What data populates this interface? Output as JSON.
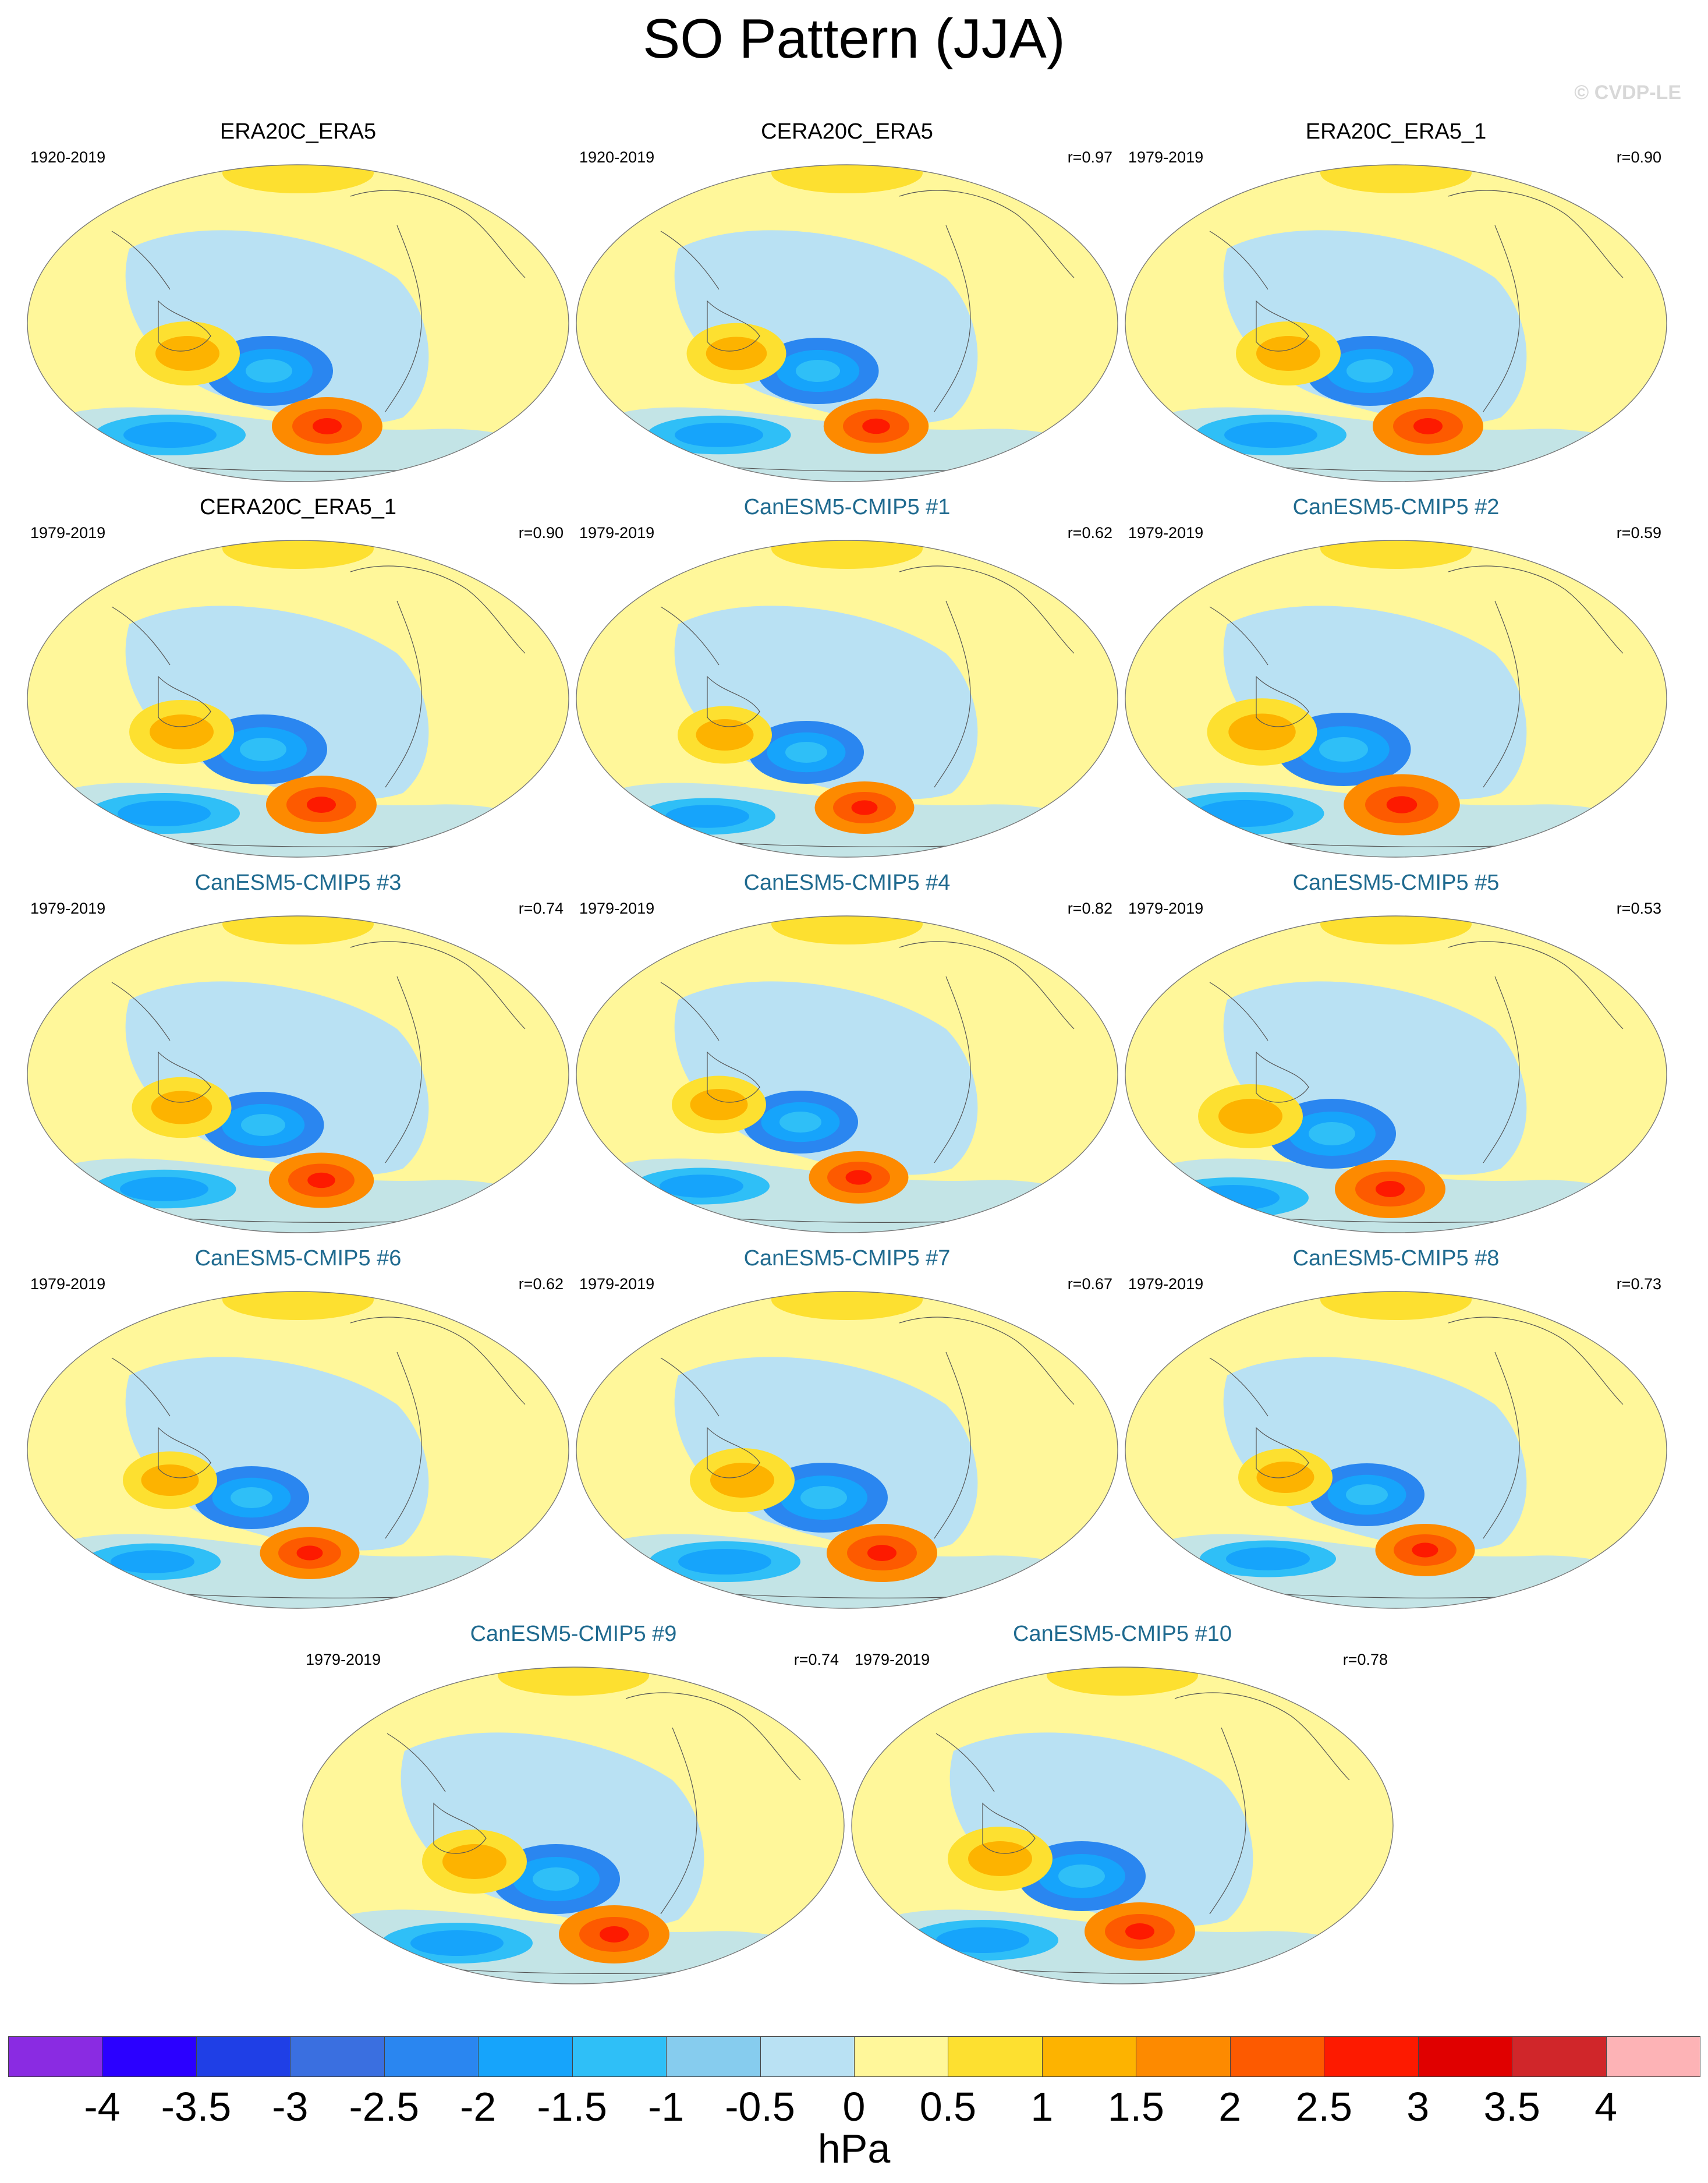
{
  "figure": {
    "title": "SO Pattern (JJA)",
    "watermark": "© CVDP-LE"
  },
  "panels": [
    {
      "name": "ERA20C_ERA5",
      "years": "1920-2019",
      "r": "",
      "type": "obs"
    },
    {
      "name": "CERA20C_ERA5",
      "years": "1920-2019",
      "r": "r=0.97",
      "type": "obs"
    },
    {
      "name": "ERA20C_ERA5_1",
      "years": "1979-2019",
      "r": "r=0.90",
      "type": "obs"
    },
    {
      "name": "CERA20C_ERA5_1",
      "years": "1979-2019",
      "r": "r=0.90",
      "type": "obs"
    },
    {
      "name": "CanESM5-CMIP5 #1",
      "years": "1979-2019",
      "r": "r=0.62",
      "type": "model"
    },
    {
      "name": "CanESM5-CMIP5 #2",
      "years": "1979-2019",
      "r": "r=0.59",
      "type": "model"
    },
    {
      "name": "CanESM5-CMIP5 #3",
      "years": "1979-2019",
      "r": "r=0.74",
      "type": "model"
    },
    {
      "name": "CanESM5-CMIP5 #4",
      "years": "1979-2019",
      "r": "r=0.82",
      "type": "model"
    },
    {
      "name": "CanESM5-CMIP5 #5",
      "years": "1979-2019",
      "r": "r=0.53",
      "type": "model"
    },
    {
      "name": "CanESM5-CMIP5 #6",
      "years": "1979-2019",
      "r": "r=0.62",
      "type": "model"
    },
    {
      "name": "CanESM5-CMIP5 #7",
      "years": "1979-2019",
      "r": "r=0.67",
      "type": "model"
    },
    {
      "name": "CanESM5-CMIP5 #8",
      "years": "1979-2019",
      "r": "r=0.73",
      "type": "model"
    },
    {
      "name": "CanESM5-CMIP5 #9",
      "years": "1979-2019",
      "r": "r=0.74",
      "type": "model"
    },
    {
      "name": "CanESM5-CMIP5 #10",
      "years": "1979-2019",
      "r": "r=0.78",
      "type": "model"
    }
  ],
  "colorbar": {
    "unit": "hPa",
    "ticks": [
      "-4",
      "-3.5",
      "-3",
      "-2.5",
      "-2",
      "-1.5",
      "-1",
      "-0.5",
      "0",
      "0.5",
      "1",
      "1.5",
      "2",
      "2.5",
      "3",
      "3.5",
      "4"
    ],
    "colors": [
      "#8a2be2",
      "#2b00ff",
      "#1f3fe6",
      "#3a6fe0",
      "#2a86f0",
      "#16a4fb",
      "#2fbff7",
      "#86ccee",
      "#b9e1f3",
      "#fff79a",
      "#fde030",
      "#fdb300",
      "#fd8a00",
      "#fd5a00",
      "#fd1a00",
      "#e00000",
      "#d0262a",
      "#fdb3b6"
    ]
  },
  "map_style": {
    "ocean_neg_light": "#b9e1f3",
    "land_pos_light": "#fff79a",
    "coast_color": "#555555"
  }
}
